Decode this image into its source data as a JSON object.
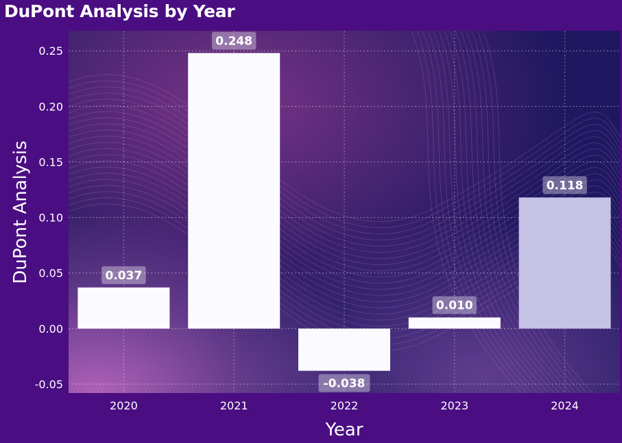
{
  "chart_data": {
    "type": "bar",
    "title": "DuPont Analysis by Year",
    "xlabel": "Year",
    "ylabel": "DuPont Analysis",
    "categories": [
      "2020",
      "2021",
      "2022",
      "2023",
      "2024"
    ],
    "values": [
      0.037,
      0.248,
      -0.038,
      0.01,
      0.118
    ],
    "data_labels": [
      "0.037",
      "0.248",
      "-0.038",
      "0.010",
      "0.118"
    ],
    "y_ticks": [
      -0.05,
      0.0,
      0.05,
      0.1,
      0.15,
      0.2,
      0.25
    ],
    "y_tick_labels": [
      "-0.05",
      "0.00",
      "0.05",
      "0.10",
      "0.15",
      "0.20",
      "0.25"
    ],
    "ylim": [
      -0.058,
      0.268
    ],
    "grid": true,
    "colors": {
      "page_background": "#4a0e82",
      "bar": "#fbfbff",
      "bar_highlight": "#c5c2e6",
      "plot_background": "#1f1860",
      "label_box": "#ffffff"
    },
    "highlight_index": 4
  }
}
